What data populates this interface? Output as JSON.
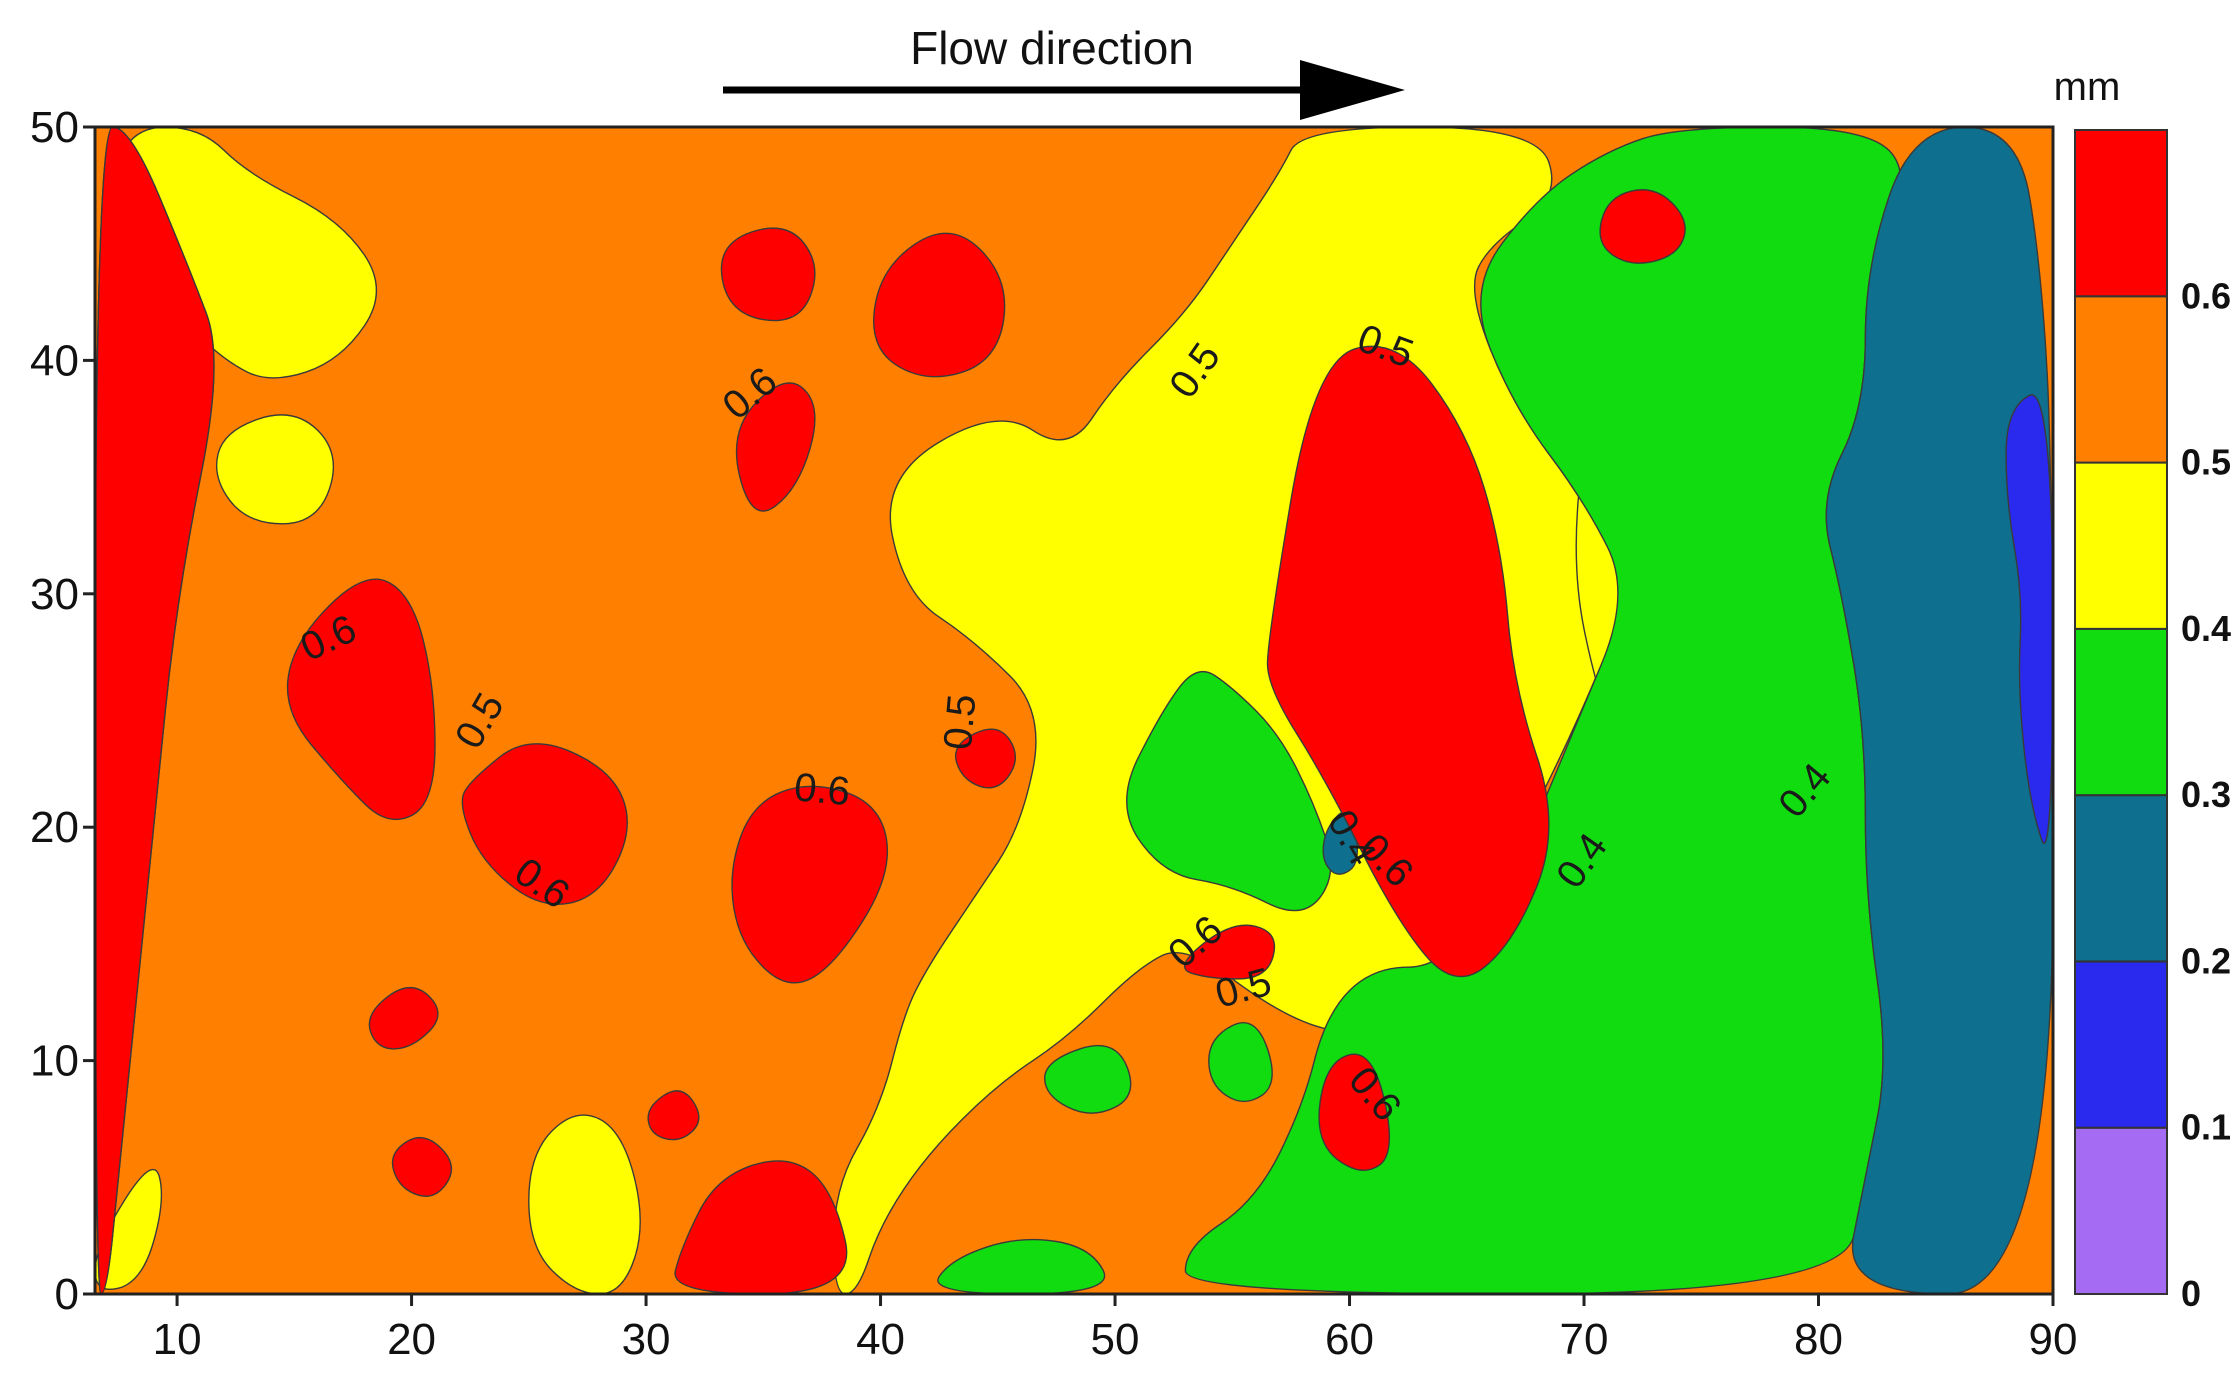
{
  "chart_data": {
    "type": "heatmap",
    "annotation": "Flow direction",
    "xlim": [
      6.5,
      90
    ],
    "ylim": [
      0,
      50
    ],
    "x_ticks": [
      10,
      20,
      30,
      40,
      50,
      60,
      70,
      80,
      90
    ],
    "y_ticks": [
      0,
      10,
      20,
      30,
      40,
      50
    ],
    "colorbar": {
      "unit": "mm",
      "levels": [
        0,
        0.1,
        0.2,
        0.3,
        0.4,
        0.5,
        0.6
      ],
      "labels": [
        "0",
        "0.1",
        "0.2",
        "0.3",
        "0.4",
        "0.5",
        "0.6"
      ],
      "colors": [
        "#a56bf2",
        "#2a2aee",
        "#0e6f8f",
        "#10dc10",
        "#ffff00",
        "#ff8000",
        "#ff0000"
      ]
    },
    "contour_labels": [
      {
        "text": "0.6",
        "x": 34.5,
        "y": 38.5,
        "angle": -40
      },
      {
        "text": "0.5",
        "x": 53.5,
        "y": 39.5,
        "angle": -55
      },
      {
        "text": "0.5",
        "x": 61.5,
        "y": 40.5,
        "angle": 20
      },
      {
        "text": "0.6",
        "x": 16.5,
        "y": 28.0,
        "angle": -25
      },
      {
        "text": "0.5",
        "x": 23.0,
        "y": 24.5,
        "angle": -60
      },
      {
        "text": "0.5",
        "x": 43.5,
        "y": 24.5,
        "angle": -85
      },
      {
        "text": "0.6",
        "x": 37.5,
        "y": 21.5,
        "angle": 5
      },
      {
        "text": "0.6",
        "x": 25.5,
        "y": 17.5,
        "angle": 35
      },
      {
        "text": "0.4",
        "x": 60.0,
        "y": 19.5,
        "angle": 60
      },
      {
        "text": "0.6",
        "x": 61.5,
        "y": 18.5,
        "angle": 45
      },
      {
        "text": "0.4",
        "x": 70.0,
        "y": 18.5,
        "angle": -55
      },
      {
        "text": "0.4",
        "x": 79.5,
        "y": 21.5,
        "angle": -50
      },
      {
        "text": "0.6",
        "x": 53.5,
        "y": 15.0,
        "angle": -40
      },
      {
        "text": "0.5",
        "x": 55.5,
        "y": 13.0,
        "angle": -15
      },
      {
        "text": "0.6",
        "x": 61.0,
        "y": 8.5,
        "angle": 50
      }
    ],
    "regions": [
      {
        "level": 0.6,
        "points": [
          [
            6.5,
            0
          ],
          [
            6.5,
            50
          ],
          [
            8,
            50
          ],
          [
            10.5,
            44
          ],
          [
            12,
            40
          ],
          [
            10,
            30
          ],
          [
            9,
            20
          ],
          [
            8,
            10
          ],
          [
            7.5,
            5
          ],
          [
            7,
            0
          ]
        ]
      },
      {
        "level": 0.6,
        "points": [
          [
            6.5,
            50
          ],
          [
            6.5,
            0
          ],
          [
            7,
            0
          ],
          [
            7.5,
            5
          ],
          [
            8,
            10
          ],
          [
            9,
            20
          ],
          [
            10,
            30
          ],
          [
            12,
            40
          ],
          [
            10.5,
            44
          ],
          [
            8,
            50
          ]
        ]
      },
      {
        "level": 0.6,
        "points": [
          [
            15,
            28
          ],
          [
            18,
            31
          ],
          [
            20,
            30
          ],
          [
            21,
            26
          ],
          [
            21,
            21
          ],
          [
            19,
            20
          ],
          [
            17,
            22
          ],
          [
            14.5,
            25
          ]
        ]
      },
      {
        "level": 0.6,
        "points": [
          [
            22.5,
            22
          ],
          [
            25,
            24
          ],
          [
            28.5,
            22.5
          ],
          [
            29.5,
            20
          ],
          [
            28,
            17
          ],
          [
            25.5,
            16.5
          ],
          [
            23,
            18.5
          ],
          [
            22,
            21
          ]
        ]
      },
      {
        "level": 0.6,
        "points": [
          [
            34,
            15
          ],
          [
            36,
            13
          ],
          [
            38,
            14
          ],
          [
            40.5,
            18
          ],
          [
            40,
            21
          ],
          [
            37,
            22
          ],
          [
            34.5,
            21
          ],
          [
            33.5,
            18
          ]
        ]
      },
      {
        "level": 0.6,
        "points": [
          [
            33.5,
            37
          ],
          [
            36,
            39.5
          ],
          [
            37.5,
            38
          ],
          [
            36.5,
            34.5
          ],
          [
            34.5,
            33
          ]
        ]
      },
      {
        "level": 0.6,
        "points": [
          [
            33,
            45
          ],
          [
            36,
            46
          ],
          [
            37.5,
            44
          ],
          [
            36.5,
            41.5
          ],
          [
            33.5,
            42
          ]
        ]
      },
      {
        "level": 0.6,
        "points": [
          [
            40,
            44
          ],
          [
            43,
            46
          ],
          [
            45.5,
            43.5
          ],
          [
            45,
            40
          ],
          [
            42,
            39
          ],
          [
            39.5,
            40.5
          ]
        ]
      },
      {
        "level": 0.6,
        "points": [
          [
            31,
            0
          ],
          [
            39,
            0
          ],
          [
            38,
            4.5
          ],
          [
            36,
            6
          ],
          [
            33,
            5
          ],
          [
            31.5,
            2
          ]
        ]
      },
      {
        "level": 0.6,
        "points": [
          [
            56.5,
            28
          ],
          [
            58.5,
            40
          ],
          [
            62,
            41
          ],
          [
            65,
            37
          ],
          [
            66.5,
            32
          ],
          [
            67,
            26
          ],
          [
            69,
            20
          ],
          [
            67,
            15
          ],
          [
            64.5,
            13
          ],
          [
            62,
            16
          ],
          [
            59,
            22
          ],
          [
            56.5,
            26
          ]
        ]
      },
      {
        "level": 0.6,
        "points": [
          [
            52.5,
            14
          ],
          [
            55,
            16
          ],
          [
            57,
            15.5
          ],
          [
            56.5,
            13.5
          ],
          [
            54,
            13.5
          ]
        ]
      },
      {
        "level": 0.6,
        "points": [
          [
            59,
            10
          ],
          [
            61,
            10.5
          ],
          [
            62,
            6
          ],
          [
            60.5,
            5
          ],
          [
            58.5,
            6.5
          ]
        ]
      },
      {
        "level": 0.6,
        "points": [
          [
            71,
            47
          ],
          [
            73,
            47.5
          ],
          [
            74.5,
            46
          ],
          [
            74,
            44.5
          ],
          [
            72,
            44
          ],
          [
            70.5,
            45
          ]
        ]
      },
      {
        "level": 0.6,
        "points": [
          [
            18,
            12
          ],
          [
            20,
            13.5
          ],
          [
            21.5,
            12
          ],
          [
            20,
            10.5
          ],
          [
            18.5,
            10.5
          ]
        ]
      },
      {
        "level": 0.6,
        "points": [
          [
            19,
            6
          ],
          [
            20.5,
            7
          ],
          [
            22,
            5.5
          ],
          [
            21,
            4
          ],
          [
            19.5,
            4.5
          ]
        ]
      },
      {
        "level": 0.6,
        "points": [
          [
            43,
            23.5
          ],
          [
            45,
            24.5
          ],
          [
            46,
            23
          ],
          [
            45,
            21.5
          ],
          [
            43.5,
            22
          ]
        ]
      },
      {
        "level": 0.6,
        "points": [
          [
            30,
            8
          ],
          [
            31.5,
            9
          ],
          [
            32.5,
            7.5
          ],
          [
            31.5,
            6.5
          ],
          [
            30.2,
            6.8
          ]
        ]
      }
    ],
    "yellow_regions": [
      {
        "points": [
          [
            8,
            44
          ],
          [
            10,
            42
          ],
          [
            12,
            40
          ],
          [
            14,
            39
          ],
          [
            17,
            40
          ],
          [
            19,
            43
          ],
          [
            17,
            46
          ],
          [
            13,
            48
          ],
          [
            11,
            50
          ],
          [
            8,
            50
          ],
          [
            7,
            47
          ]
        ]
      },
      {
        "points": [
          [
            12,
            37
          ],
          [
            15,
            38
          ],
          [
            17,
            36
          ],
          [
            16,
            33
          ],
          [
            13,
            33
          ],
          [
            11.5,
            35
          ]
        ]
      },
      {
        "points": [
          [
            38,
            0
          ],
          [
            38,
            4.5
          ],
          [
            40,
            8
          ],
          [
            41,
            12
          ],
          [
            42,
            14
          ],
          [
            44,
            17
          ],
          [
            46,
            20
          ],
          [
            47,
            25
          ],
          [
            44,
            28
          ],
          [
            41,
            30
          ],
          [
            40,
            35
          ],
          [
            45,
            38
          ],
          [
            48,
            36
          ],
          [
            50,
            39
          ],
          [
            53,
            42
          ],
          [
            55,
            45
          ],
          [
            57,
            48
          ],
          [
            58,
            50
          ],
          [
            68,
            50
          ],
          [
            69,
            47
          ],
          [
            66,
            45
          ],
          [
            65,
            43
          ],
          [
            67,
            38
          ],
          [
            70,
            34
          ],
          [
            72,
            30
          ],
          [
            69.5,
            24
          ],
          [
            67,
            19
          ],
          [
            64,
            14
          ],
          [
            62,
            12
          ],
          [
            60,
            11
          ],
          [
            57,
            12
          ],
          [
            53,
            15
          ],
          [
            51,
            14
          ],
          [
            48,
            11
          ],
          [
            45,
            9
          ],
          [
            42,
            6
          ],
          [
            40,
            3
          ],
          [
            39,
            0
          ]
        ]
      },
      {
        "points": [
          [
            6.5,
            2
          ],
          [
            9,
            6
          ],
          [
            9.5,
            4
          ],
          [
            8.5,
            0.5
          ],
          [
            6.5,
            0
          ]
        ]
      },
      {
        "points": [
          [
            25,
            6
          ],
          [
            27,
            8
          ],
          [
            29,
            7
          ],
          [
            30,
            3
          ],
          [
            29,
            0
          ],
          [
            27,
            0
          ],
          [
            25,
            2
          ]
        ]
      },
      {
        "points": [
          [
            70,
            37
          ],
          [
            72,
            40
          ],
          [
            74,
            38
          ],
          [
            75,
            35
          ],
          [
            76,
            30
          ],
          [
            74,
            26
          ],
          [
            72,
            22
          ],
          [
            70.5,
            26
          ],
          [
            69.5,
            31
          ]
        ]
      },
      {
        "points": [
          [
            78,
            21
          ],
          [
            80,
            22.5
          ],
          [
            80.5,
            20.5
          ],
          [
            79,
            18
          ],
          [
            77.5,
            18.5
          ]
        ]
      }
    ],
    "green_regions": [
      {
        "points": [
          [
            65,
            43
          ],
          [
            68,
            47
          ],
          [
            71,
            49
          ],
          [
            74,
            50
          ],
          [
            82,
            50
          ],
          [
            84,
            48
          ],
          [
            82,
            44
          ],
          [
            82,
            38
          ],
          [
            80,
            34
          ],
          [
            81,
            30
          ],
          [
            82,
            24
          ],
          [
            82,
            17
          ],
          [
            83,
            10
          ],
          [
            82,
            5
          ],
          [
            81,
            0
          ],
          [
            53,
            0
          ],
          [
            53,
            2
          ],
          [
            56,
            4
          ],
          [
            58,
            8
          ],
          [
            59,
            12
          ],
          [
            61,
            14
          ],
          [
            64,
            14
          ],
          [
            67,
            18
          ],
          [
            69.5,
            24
          ],
          [
            72,
            30
          ],
          [
            70,
            34
          ],
          [
            67,
            38
          ]
        ]
      },
      {
        "points": [
          [
            50,
            21
          ],
          [
            52,
            25
          ],
          [
            53.5,
            27
          ],
          [
            55,
            26
          ],
          [
            57,
            24
          ],
          [
            58.5,
            21
          ],
          [
            59.5,
            18
          ],
          [
            58,
            16
          ],
          [
            55,
            17.5
          ],
          [
            52,
            18
          ]
        ]
      },
      {
        "points": [
          [
            42,
            0
          ],
          [
            50,
            0
          ],
          [
            49,
            2
          ],
          [
            46,
            2.5
          ],
          [
            43,
            1.5
          ]
        ]
      },
      {
        "points": [
          [
            47,
            10
          ],
          [
            50,
            11
          ],
          [
            51,
            8.5
          ],
          [
            49,
            7.5
          ],
          [
            47,
            8.5
          ]
        ]
      },
      {
        "points": [
          [
            54,
            11
          ],
          [
            56,
            12
          ],
          [
            57,
            9
          ],
          [
            55.5,
            8
          ],
          [
            54,
            9
          ]
        ]
      }
    ],
    "darkblue_regions": [
      {
        "points": [
          [
            84,
            50
          ],
          [
            88.5,
            50
          ],
          [
            89.5,
            44
          ],
          [
            90,
            35
          ],
          [
            90,
            0
          ],
          [
            81,
            0
          ],
          [
            82,
            5
          ],
          [
            83,
            10
          ],
          [
            82,
            17
          ],
          [
            82,
            24
          ],
          [
            81,
            30
          ],
          [
            80,
            34
          ],
          [
            82,
            38
          ],
          [
            82,
            44
          ]
        ]
      },
      {
        "points": [
          [
            59,
            20
          ],
          [
            60,
            21
          ],
          [
            60.5,
            18.5
          ],
          [
            59.5,
            17.8
          ],
          [
            58.8,
            18.6
          ]
        ]
      }
    ],
    "blue_regions": [
      {
        "points": [
          [
            88,
            38
          ],
          [
            90,
            39
          ],
          [
            90,
            18
          ],
          [
            89,
            21
          ],
          [
            88.5,
            26
          ],
          [
            88.7,
            30
          ],
          [
            88,
            34
          ]
        ]
      }
    ],
    "orange_bg_region": {
      "points": [
        [
          6.5,
          0
        ],
        [
          90,
          0
        ],
        [
          90,
          50
        ],
        [
          6.5,
          50
        ]
      ]
    }
  }
}
